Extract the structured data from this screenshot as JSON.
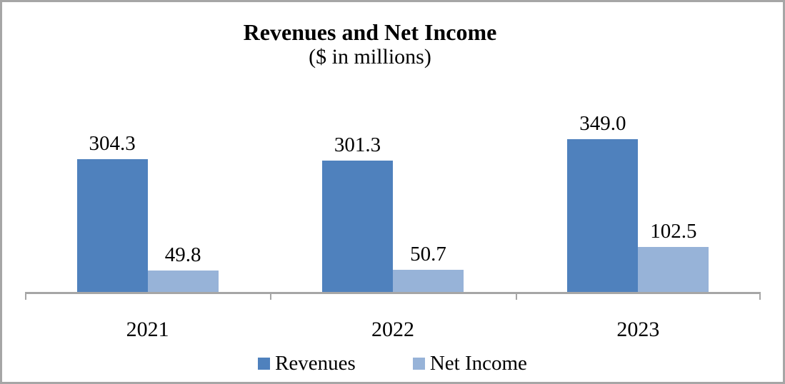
{
  "chart_data": {
    "type": "bar",
    "title": "Revenues and Net Income",
    "subtitle": "($ in millions)",
    "categories": [
      "2021",
      "2022",
      "2023"
    ],
    "series": [
      {
        "name": "Revenues",
        "color": "#4f81bd",
        "values": [
          304.3,
          301.3,
          349.0
        ],
        "labels": [
          "304.3",
          "301.3",
          "349.0"
        ]
      },
      {
        "name": "Net Income",
        "color": "#97b3d8",
        "values": [
          49.8,
          50.7,
          102.5
        ],
        "labels": [
          "49.8",
          "50.7",
          "102.5"
        ]
      }
    ],
    "ylim": [
      0,
      420
    ],
    "xlabel": "",
    "ylabel": "",
    "grid": false,
    "y_axis_visible": false,
    "legend_position": "bottom",
    "data_labels": true,
    "axis_color": "#a6a6a6",
    "frame_border_color": "#a6a6a6",
    "text_color": "#000000"
  }
}
